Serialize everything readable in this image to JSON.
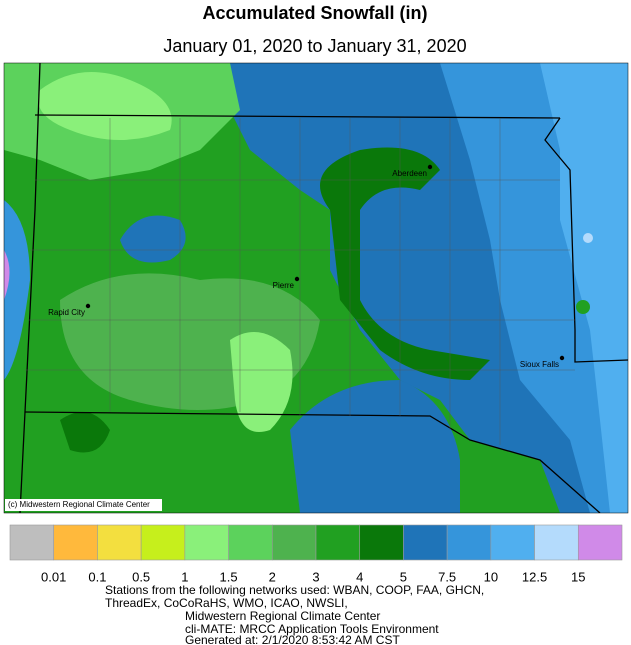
{
  "title": "Accumulated Snowfall (in)",
  "subtitle": "January 01, 2020 to January 31, 2020",
  "cities": [
    {
      "name": "Aberdeen"
    },
    {
      "name": "Pierre"
    },
    {
      "name": "Rapid City"
    },
    {
      "name": "Sioux Falls"
    }
  ],
  "copyright": "(c) Midwestern Regional Climate Center",
  "legend": {
    "colors": [
      "#bebebe",
      "#ffb93c",
      "#f3df3f",
      "#c6ef1c",
      "#8af07a",
      "#5cd25c",
      "#4eb24e",
      "#21a021",
      "#0a780a",
      "#1f74b8",
      "#3595db",
      "#50afef",
      "#b4dbfc",
      "#d08ae8"
    ],
    "labels": [
      0.01,
      0.1,
      0.5,
      1,
      1.5,
      2,
      3,
      4,
      5,
      7.5,
      10,
      12.5,
      15
    ]
  },
  "footer": [
    "Stations from the following networks used: WBAN, COOP, FAA, GHCN,",
    "ThreadEx, CoCoRaHS, WMO, ICAO, NWSLI,",
    "Midwestern Regional Climate Center",
    "cli-MATE: MRCC Application Tools Environment",
    "Generated at: 2/1/2020 8:53:42 AM CST"
  ]
}
